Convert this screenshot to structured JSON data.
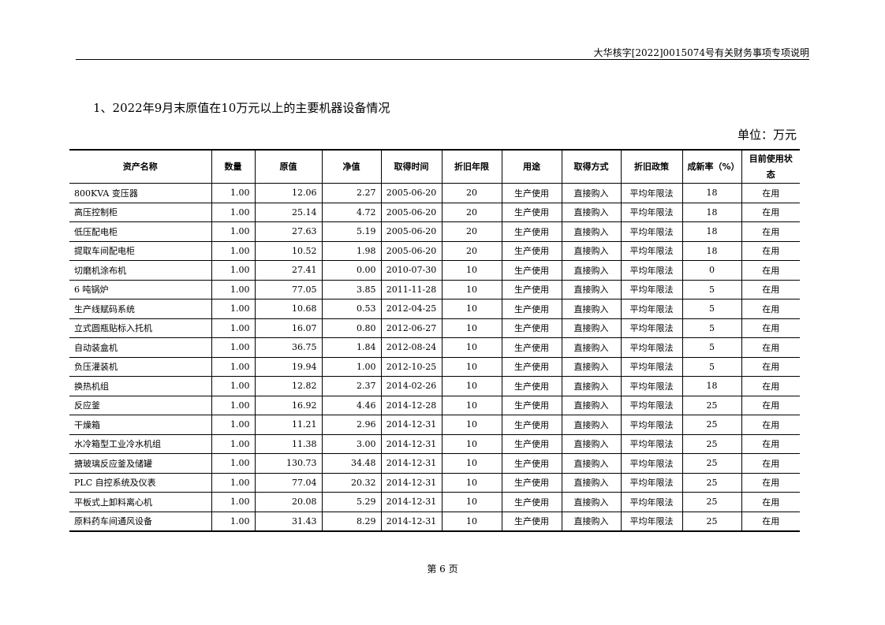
{
  "header": {
    "running_title": "大华核字[2022]0015074号有关财务事项专项说明"
  },
  "section": {
    "title": "1、2022年9月末原值在10万元以上的主要机器设备情况",
    "unit": "单位：万元"
  },
  "table": {
    "columns": [
      "资产名称",
      "数量",
      "原值",
      "净值",
      "取得时间",
      "折旧年限",
      "用途",
      "取得方式",
      "折旧政策",
      "成新率（%）",
      "目前使用状态"
    ],
    "rows": [
      [
        "800KVA 变压器",
        "1.00",
        "12.06",
        "2.27",
        "2005-06-20",
        "20",
        "生产使用",
        "直接购入",
        "平均年限法",
        "18",
        "在用"
      ],
      [
        "高压控制柜",
        "1.00",
        "25.14",
        "4.72",
        "2005-06-20",
        "20",
        "生产使用",
        "直接购入",
        "平均年限法",
        "18",
        "在用"
      ],
      [
        "低压配电柜",
        "1.00",
        "27.63",
        "5.19",
        "2005-06-20",
        "20",
        "生产使用",
        "直接购入",
        "平均年限法",
        "18",
        "在用"
      ],
      [
        "提取车间配电柜",
        "1.00",
        "10.52",
        "1.98",
        "2005-06-20",
        "20",
        "生产使用",
        "直接购入",
        "平均年限法",
        "18",
        "在用"
      ],
      [
        "切磨机涂布机",
        "1.00",
        "27.41",
        "0.00",
        "2010-07-30",
        "10",
        "生产使用",
        "直接购入",
        "平均年限法",
        "0",
        "在用"
      ],
      [
        "6 吨锅炉",
        "1.00",
        "77.05",
        "3.85",
        "2011-11-28",
        "10",
        "生产使用",
        "直接购入",
        "平均年限法",
        "5",
        "在用"
      ],
      [
        "生产线赋码系统",
        "1.00",
        "10.68",
        "0.53",
        "2012-04-25",
        "10",
        "生产使用",
        "直接购入",
        "平均年限法",
        "5",
        "在用"
      ],
      [
        "立式圆瓶贴标入托机",
        "1.00",
        "16.07",
        "0.80",
        "2012-06-27",
        "10",
        "生产使用",
        "直接购入",
        "平均年限法",
        "5",
        "在用"
      ],
      [
        "自动装盒机",
        "1.00",
        "36.75",
        "1.84",
        "2012-08-24",
        "10",
        "生产使用",
        "直接购入",
        "平均年限法",
        "5",
        "在用"
      ],
      [
        "负压灌装机",
        "1.00",
        "19.94",
        "1.00",
        "2012-10-25",
        "10",
        "生产使用",
        "直接购入",
        "平均年限法",
        "5",
        "在用"
      ],
      [
        "换热机组",
        "1.00",
        "12.82",
        "2.37",
        "2014-02-26",
        "10",
        "生产使用",
        "直接购入",
        "平均年限法",
        "18",
        "在用"
      ],
      [
        "反应釜",
        "1.00",
        "16.92",
        "4.46",
        "2014-12-28",
        "10",
        "生产使用",
        "直接购入",
        "平均年限法",
        "25",
        "在用"
      ],
      [
        "干燥箱",
        "1.00",
        "11.21",
        "2.96",
        "2014-12-31",
        "10",
        "生产使用",
        "直接购入",
        "平均年限法",
        "25",
        "在用"
      ],
      [
        "水冷箱型工业冷水机组",
        "1.00",
        "11.38",
        "3.00",
        "2014-12-31",
        "10",
        "生产使用",
        "直接购入",
        "平均年限法",
        "25",
        "在用"
      ],
      [
        "搪玻璃反应釜及储罐",
        "1.00",
        "130.73",
        "34.48",
        "2014-12-31",
        "10",
        "生产使用",
        "直接购入",
        "平均年限法",
        "25",
        "在用"
      ],
      [
        "PLC 自控系统及仪表",
        "1.00",
        "77.04",
        "20.32",
        "2014-12-31",
        "10",
        "生产使用",
        "直接购入",
        "平均年限法",
        "25",
        "在用"
      ],
      [
        "平板式上卸料离心机",
        "1.00",
        "20.08",
        "5.29",
        "2014-12-31",
        "10",
        "生产使用",
        "直接购入",
        "平均年限法",
        "25",
        "在用"
      ],
      [
        "原料药车间通风设备",
        "1.00",
        "31.43",
        "8.29",
        "2014-12-31",
        "10",
        "生产使用",
        "直接购入",
        "平均年限法",
        "25",
        "在用"
      ]
    ]
  },
  "footer": {
    "page": "第 6 页"
  }
}
